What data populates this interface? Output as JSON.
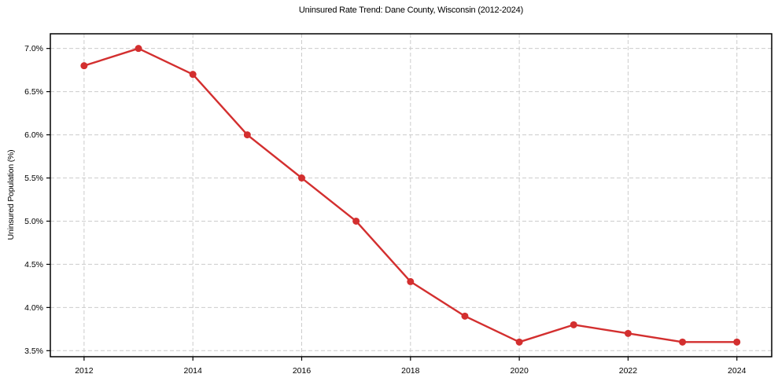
{
  "chart_data": {
    "type": "line",
    "title": "Uninsured Rate Trend: Dane County, Wisconsin (2012-2024)",
    "xlabel": "",
    "ylabel": "Uninsured Population (%)",
    "x": [
      2012,
      2013,
      2014,
      2015,
      2016,
      2017,
      2018,
      2019,
      2020,
      2021,
      2022,
      2023,
      2024
    ],
    "values": [
      6.8,
      7.0,
      6.7,
      6.0,
      5.5,
      5.0,
      4.3,
      3.9,
      3.6,
      3.8,
      3.7,
      3.6,
      3.6
    ],
    "x_ticks": [
      2012,
      2014,
      2016,
      2018,
      2020,
      2022,
      2024
    ],
    "x_tick_labels": [
      "2012",
      "2014",
      "2016",
      "2018",
      "2020",
      "2022",
      "2024"
    ],
    "y_ticks": [
      3.5,
      4.0,
      4.5,
      5.0,
      5.5,
      6.0,
      6.5,
      7.0
    ],
    "y_tick_labels": [
      "3.5%",
      "4.0%",
      "4.5%",
      "5.0%",
      "5.5%",
      "6.0%",
      "6.5%",
      "7.0%"
    ],
    "xlim": [
      2011.38,
      2024.64
    ],
    "ylim": [
      3.43,
      7.17
    ],
    "grid": true,
    "grid_style": "dashed",
    "legend": false,
    "line_color": "#d32f2f",
    "marker": "circle",
    "marker_color": "#d32f2f",
    "grid_color": "#cccccc",
    "spine_color": "#000000",
    "tick_color": "#000000",
    "background": "#ffffff"
  }
}
